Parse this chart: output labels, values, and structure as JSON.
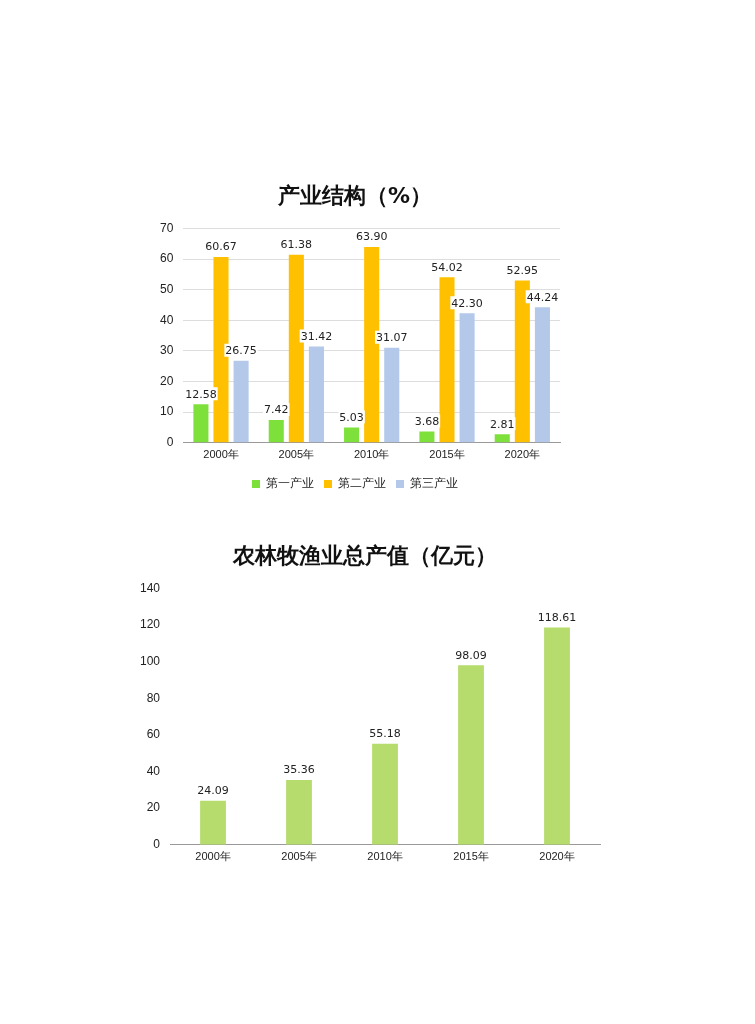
{
  "chart_data": [
    {
      "type": "bar",
      "title": "产业结构（%）",
      "categories": [
        "2000年",
        "2005年",
        "2010年",
        "2015年",
        "2020年"
      ],
      "series": [
        {
          "name": "第一产业",
          "color": "#7ee03a",
          "values": [
            12.58,
            7.42,
            5.03,
            3.68,
            2.81
          ],
          "value_labels": [
            "12.58",
            "7.42",
            "5.03",
            "3.68",
            "2.81"
          ]
        },
        {
          "name": "第二产业",
          "color": "#ffc000",
          "values": [
            60.67,
            61.38,
            63.9,
            54.02,
            52.95
          ],
          "value_labels": [
            "60.67",
            "61.38",
            "63.90",
            "54.02",
            "52.95"
          ]
        },
        {
          "name": "第三产业",
          "color": "#b4c8ea",
          "values": [
            26.75,
            31.42,
            31.07,
            42.3,
            44.24
          ],
          "value_labels": [
            "26.75",
            "31.42",
            "31.07",
            "42.30",
            "44.24"
          ]
        }
      ],
      "ylim": [
        0,
        70
      ],
      "yticks": [
        0,
        10,
        20,
        30,
        40,
        50,
        60,
        70
      ],
      "grid": "y",
      "legend": "bottom"
    },
    {
      "type": "bar",
      "title": "农林牧渔业总产值（亿元）",
      "categories": [
        "2000年",
        "2005年",
        "2010年",
        "2015年",
        "2020年"
      ],
      "values": [
        24.09,
        35.36,
        55.18,
        98.09,
        118.61
      ],
      "color": "#b5dc6c",
      "ylim": [
        0,
        140
      ],
      "yticks": [
        0,
        20,
        40,
        60,
        80,
        100,
        120,
        140
      ],
      "grid": false,
      "legend": false,
      "data_labels": true
    }
  ]
}
